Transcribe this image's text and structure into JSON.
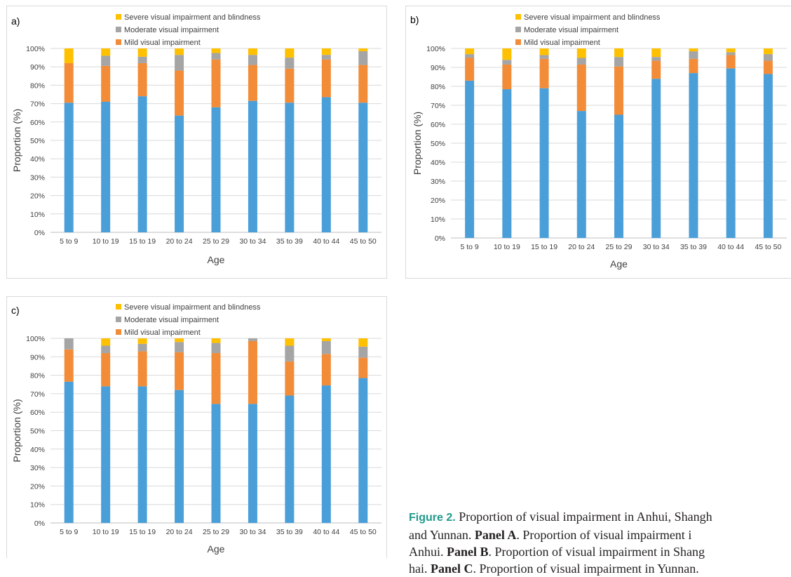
{
  "colors": {
    "normal": "#4a9fd9",
    "mild": "#f28c38",
    "moderate": "#a5a5a5",
    "severe": "#ffc000",
    "grid": "#d9d9d9",
    "caption_accent": "#1f9a8a"
  },
  "legend": {
    "severe": "Severe visual impairment and blindness",
    "moderate": "Moderate visual impairment",
    "mild": "Mild visual impairment"
  },
  "caption": {
    "figure_label": "Figure 2.",
    "line1_text": " Proportion of visual impairment in Anhui, Shangh",
    "line2_start": "and Yunnan. ",
    "panel_a": "Panel A",
    "line2_end": ". Proportion of visual impairment i",
    "line3_start": "Anhui. ",
    "panel_b": "Panel B",
    "line3_end": ". Proportion of visual impairment in Shang",
    "line4_start": "hai. ",
    "panel_c": "Panel C",
    "line4_end": ". Proportion of visual impairment in Yunnan."
  },
  "chart_data": [
    {
      "panel_label": "a)",
      "type": "bar",
      "stacked": true,
      "categories": [
        "5 to 9",
        "10 to 19",
        "15 to 19",
        "20 to 24",
        "25 to 29",
        "30 to 34",
        "35 to 39",
        "40 to 44",
        "45 to 50"
      ],
      "series": [
        {
          "key": "normal",
          "values": [
            70.5,
            71,
            74,
            63.5,
            68,
            71.5,
            70.5,
            73.5,
            70.5
          ]
        },
        {
          "key": "mild",
          "name": "Mild visual impairment",
          "values": [
            21.5,
            19.5,
            18,
            24.5,
            26,
            19.5,
            18.5,
            20.5,
            20.5
          ]
        },
        {
          "key": "moderate",
          "name": "Moderate visual impairment",
          "values": [
            0,
            5.5,
            3.5,
            8.5,
            3.5,
            5.5,
            6,
            2.5,
            7.5
          ]
        },
        {
          "key": "severe",
          "name": "Severe visual impairment and blindness",
          "values": [
            8,
            4,
            4.5,
            3.5,
            2.5,
            3.5,
            5,
            3.5,
            1.5
          ]
        }
      ],
      "ylabel": "Proportion (%)",
      "xlabel": "Age",
      "ylim": [
        0,
        100
      ],
      "yticks": [
        "0%",
        "10%",
        "20%",
        "30%",
        "40%",
        "50%",
        "60%",
        "70%",
        "80%",
        "90%",
        "100%"
      ],
      "grid": true,
      "legend_position": "top"
    },
    {
      "panel_label": "b)",
      "type": "bar",
      "stacked": true,
      "categories": [
        "5 to 9",
        "10 to 19",
        "15 to 19",
        "20 to 24",
        "25 to 29",
        "30 to 34",
        "35 to 39",
        "40 to 44",
        "45 to 50"
      ],
      "series": [
        {
          "key": "normal",
          "values": [
            83,
            78.5,
            79,
            67,
            65,
            84,
            87,
            89.5,
            86.5
          ]
        },
        {
          "key": "mild",
          "name": "Mild visual impairment",
          "values": [
            12,
            13,
            15.5,
            24.5,
            25.5,
            9.5,
            7.5,
            7,
            7
          ]
        },
        {
          "key": "moderate",
          "name": "Moderate visual impairment",
          "values": [
            2,
            2.5,
            2,
            3.5,
            5,
            2,
            4,
            1.5,
            3.5
          ]
        },
        {
          "key": "severe",
          "name": "Severe visual impairment and blindness",
          "values": [
            3,
            6,
            3.5,
            5,
            4.5,
            4.5,
            1.5,
            2,
            3
          ]
        }
      ],
      "ylabel": "Proportion (%)",
      "xlabel": "Age",
      "ylim": [
        0,
        100
      ],
      "yticks": [
        "0%",
        "10%",
        "20%",
        "30%",
        "40%",
        "50%",
        "60%",
        "70%",
        "80%",
        "90%",
        "100%"
      ],
      "grid": true,
      "legend_position": "top"
    },
    {
      "panel_label": "c)",
      "type": "bar",
      "stacked": true,
      "categories": [
        "5 to 9",
        "10 to 19",
        "15 to 19",
        "20 to 24",
        "25 to 29",
        "30 to 34",
        "35 to 39",
        "40 to 44",
        "45 to 50"
      ],
      "series": [
        {
          "key": "normal",
          "values": [
            76.5,
            74,
            74,
            72,
            64.5,
            64.5,
            69,
            74.5,
            78.5
          ]
        },
        {
          "key": "mild",
          "name": "Mild visual impairment",
          "values": [
            17.5,
            18,
            19,
            20.5,
            27.5,
            34,
            18.5,
            17,
            11
          ]
        },
        {
          "key": "moderate",
          "name": "Moderate visual impairment",
          "values": [
            6,
            4,
            4,
            5.5,
            5.5,
            1.5,
            8.5,
            7,
            6
          ]
        },
        {
          "key": "severe",
          "name": "Severe visual impairment and blindness",
          "values": [
            0,
            4,
            3,
            2,
            2.5,
            0,
            4,
            1.5,
            4.5
          ]
        }
      ],
      "ylabel": "Proportion (%)",
      "xlabel": "Age",
      "ylim": [
        0,
        100
      ],
      "yticks": [
        "0%",
        "10%",
        "20%",
        "30%",
        "40%",
        "50%",
        "60%",
        "70%",
        "80%",
        "90%",
        "100%"
      ],
      "grid": true,
      "legend_position": "top"
    }
  ]
}
